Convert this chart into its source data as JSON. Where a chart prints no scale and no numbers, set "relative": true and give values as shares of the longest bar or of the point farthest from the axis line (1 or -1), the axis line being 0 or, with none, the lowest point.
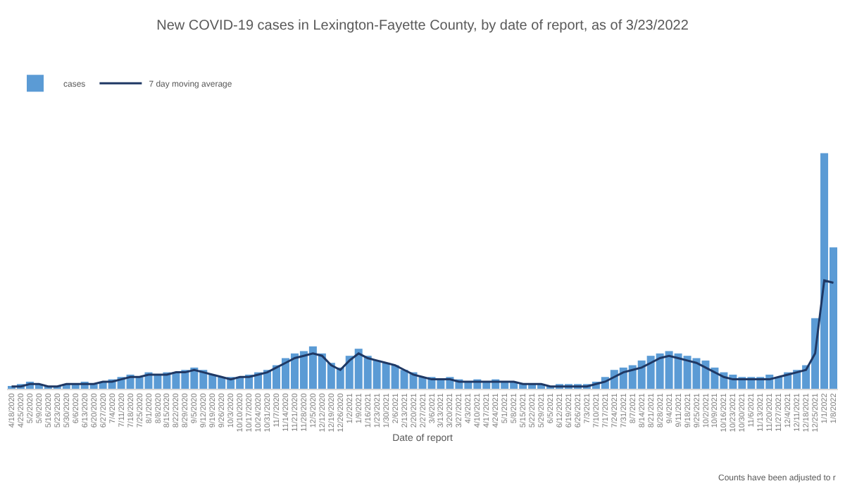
{
  "chart_data": {
    "type": "bar",
    "title": "New COVID-19 cases in Lexington-Fayette County, by date of report, as of 3/23/2022",
    "xlabel": "Date of report",
    "relative": true,
    "legend": "top left",
    "annotations": [
      "Counts have been adjusted to r"
    ],
    "categories": [
      "4/18/2020",
      "4/25/2020",
      "5/2/2020",
      "5/9/2020",
      "5/16/2020",
      "5/23/2020",
      "5/30/2020",
      "6/6/2020",
      "6/13/2020",
      "6/20/2020",
      "6/27/2020",
      "7/4/2020",
      "7/11/2020",
      "7/18/2020",
      "7/25/2020",
      "8/1/2020",
      "8/8/2020",
      "8/15/2020",
      "8/22/2020",
      "8/29/2020",
      "9/5/2020",
      "9/12/2020",
      "9/19/2020",
      "9/26/2020",
      "10/3/2020",
      "10/10/2020",
      "10/17/2020",
      "10/24/2020",
      "10/31/2020",
      "11/7/2020",
      "11/14/2020",
      "11/21/2020",
      "11/28/2020",
      "12/5/2020",
      "12/12/2020",
      "12/19/2020",
      "12/26/2020",
      "1/2/2021",
      "1/9/2021",
      "1/16/2021",
      "1/23/2021",
      "1/30/2021",
      "2/6/2021",
      "2/13/2021",
      "2/20/2021",
      "2/27/2021",
      "3/6/2021",
      "3/13/2021",
      "3/20/2021",
      "3/27/2021",
      "4/3/2021",
      "4/10/2021",
      "4/17/2021",
      "4/24/2021",
      "5/1/2021",
      "5/8/2021",
      "5/15/2021",
      "5/22/2021",
      "5/29/2021",
      "6/5/2021",
      "6/12/2021",
      "6/19/2021",
      "6/26/2021",
      "7/3/2021",
      "7/10/2021",
      "7/17/2021",
      "7/24/2021",
      "7/31/2021",
      "8/7/2021",
      "8/14/2021",
      "8/21/2021",
      "8/28/2021",
      "9/4/2021",
      "9/11/2021",
      "9/18/2021",
      "9/25/2021",
      "10/2/2021",
      "10/9/2021",
      "10/16/2021",
      "10/23/2021",
      "10/30/2021",
      "11/6/2021",
      "11/13/2021",
      "11/20/2021",
      "11/27/2021",
      "12/4/2021",
      "12/11/2021",
      "12/18/2021",
      "12/25/2021",
      "1/1/2022",
      "1/8/2022"
    ],
    "series": [
      {
        "name": "cases",
        "color": "#5b9bd5",
        "values": [
          0.01,
          0.02,
          0.03,
          0.02,
          0.01,
          0.01,
          0.02,
          0.02,
          0.03,
          0.02,
          0.03,
          0.04,
          0.05,
          0.06,
          0.05,
          0.07,
          0.06,
          0.07,
          0.07,
          0.08,
          0.09,
          0.08,
          0.06,
          0.05,
          0.05,
          0.05,
          0.06,
          0.07,
          0.08,
          0.1,
          0.13,
          0.15,
          0.16,
          0.18,
          0.15,
          0.11,
          0.09,
          0.14,
          0.17,
          0.14,
          0.12,
          0.11,
          0.1,
          0.08,
          0.07,
          0.05,
          0.05,
          0.04,
          0.05,
          0.04,
          0.03,
          0.04,
          0.03,
          0.04,
          0.03,
          0.03,
          0.02,
          0.02,
          0.02,
          0.01,
          0.02,
          0.02,
          0.02,
          0.02,
          0.03,
          0.05,
          0.08,
          0.09,
          0.1,
          0.12,
          0.14,
          0.15,
          0.16,
          0.15,
          0.14,
          0.13,
          0.12,
          0.09,
          0.07,
          0.06,
          0.05,
          0.05,
          0.05,
          0.06,
          0.05,
          0.07,
          0.08,
          0.1,
          0.3,
          1.0,
          0.6
        ]
      },
      {
        "name": "7 day moving average",
        "type": "line",
        "color": "#1f3864",
        "values": [
          0.01,
          0.01,
          0.02,
          0.02,
          0.01,
          0.01,
          0.02,
          0.02,
          0.02,
          0.02,
          0.03,
          0.03,
          0.04,
          0.05,
          0.05,
          0.06,
          0.06,
          0.06,
          0.07,
          0.07,
          0.08,
          0.07,
          0.06,
          0.05,
          0.04,
          0.05,
          0.05,
          0.06,
          0.07,
          0.09,
          0.11,
          0.13,
          0.14,
          0.15,
          0.14,
          0.1,
          0.08,
          0.12,
          0.15,
          0.13,
          0.12,
          0.11,
          0.1,
          0.08,
          0.06,
          0.05,
          0.04,
          0.04,
          0.04,
          0.03,
          0.03,
          0.03,
          0.03,
          0.03,
          0.03,
          0.03,
          0.02,
          0.02,
          0.02,
          0.01,
          0.01,
          0.01,
          0.01,
          0.01,
          0.02,
          0.03,
          0.05,
          0.07,
          0.08,
          0.09,
          0.11,
          0.13,
          0.14,
          0.13,
          0.12,
          0.11,
          0.09,
          0.07,
          0.05,
          0.04,
          0.04,
          0.04,
          0.04,
          0.04,
          0.05,
          0.06,
          0.07,
          0.08,
          0.15,
          0.46,
          0.45
        ]
      }
    ]
  }
}
